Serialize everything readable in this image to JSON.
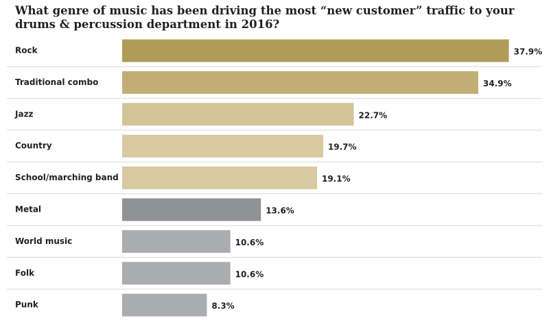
{
  "chart_data": {
    "type": "bar",
    "orientation": "horizontal",
    "title": "What genre of music has been driving the most “new customer” traffic to your drums & percussion department in 2016?",
    "categories": [
      "Rock",
      "Traditional combo",
      "Jazz",
      "Country",
      "School/marching band",
      "Metal",
      "World music",
      "Folk",
      "Punk"
    ],
    "values": [
      37.9,
      34.9,
      22.7,
      19.7,
      19.1,
      13.6,
      10.6,
      10.6,
      8.3
    ],
    "value_labels": [
      "37.9%",
      "34.9%",
      "22.7%",
      "19.7%",
      "19.1%",
      "13.6%",
      "10.6%",
      "10.6%",
      "8.3%"
    ],
    "colors": [
      "#b19b59",
      "#c2ae75",
      "#d3c497",
      "#d8c9a0",
      "#d8c9a0",
      "#919296",
      "#abacb0",
      "#abacb0",
      "#abacb0"
    ],
    "unit": "%",
    "xlim": [
      0,
      38
    ],
    "xlabel": "",
    "ylabel": "",
    "grid": false,
    "legend": "none"
  }
}
